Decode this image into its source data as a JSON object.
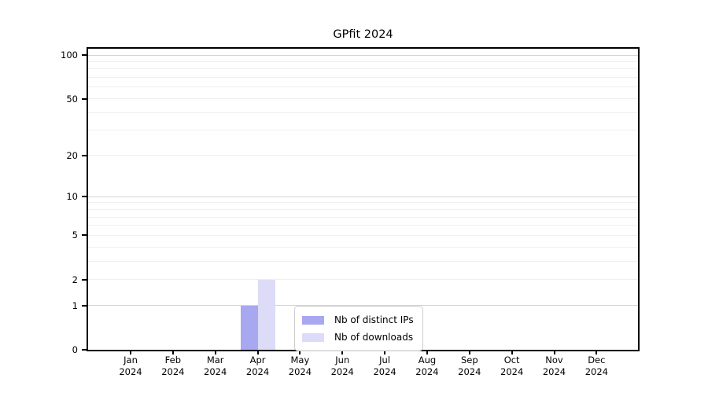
{
  "title": "GPfit 2024",
  "chart_data": {
    "type": "bar",
    "title": "GPfit 2024",
    "categories": [
      "Jan",
      "Feb",
      "Mar",
      "Apr",
      "May",
      "Jun",
      "Jul",
      "Aug",
      "Sep",
      "Oct",
      "Nov",
      "Dec"
    ],
    "year_label": "2024",
    "series": [
      {
        "name": "Nb of distinct IPs",
        "color": "#a8a8f0",
        "values": [
          0,
          0,
          0,
          1,
          0,
          0,
          0,
          0,
          0,
          0,
          0,
          0
        ]
      },
      {
        "name": "Nb of downloads",
        "color": "#dcdcf8",
        "values": [
          0,
          0,
          0,
          2,
          0,
          0,
          0,
          0,
          0,
          0,
          0,
          0
        ]
      }
    ],
    "yscale": "log1p",
    "ylim": [
      0,
      100
    ],
    "ytick_values": [
      0,
      1,
      2,
      5,
      10,
      20,
      50,
      100
    ],
    "ytick_labels": [
      "0",
      "1",
      "2",
      "5",
      "10",
      "20",
      "50",
      "100"
    ],
    "major_grid_values": [
      1,
      10,
      100
    ],
    "minor_grid_values": [
      2,
      3,
      4,
      5,
      6,
      7,
      8,
      9,
      20,
      30,
      40,
      50,
      60,
      70,
      80,
      90
    ],
    "grid": true,
    "legend": {
      "entries": [
        "Nb of distinct IPs",
        "Nb of downloads"
      ],
      "location": "inside-bottom-center"
    },
    "colors": {
      "major_grid": "#d4d4d4",
      "minor_grid": "#efefef",
      "spine": "#000000",
      "tick": "#000000",
      "background": "#ffffff",
      "text": "#000000"
    }
  }
}
